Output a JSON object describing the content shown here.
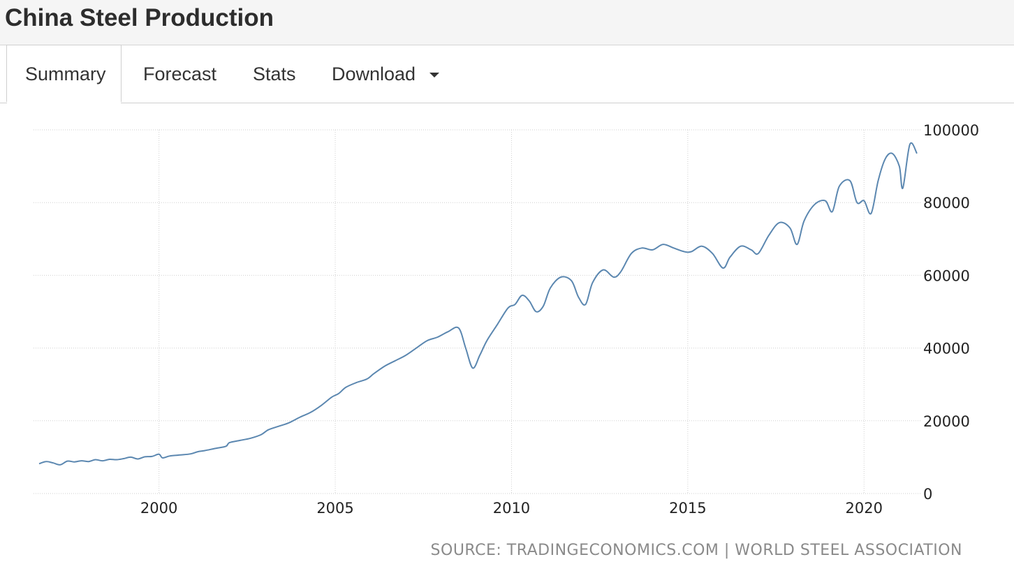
{
  "header": {
    "title": "China Steel Production"
  },
  "tabs": [
    {
      "label": "Summary",
      "active": true
    },
    {
      "label": "Forecast",
      "active": false
    },
    {
      "label": "Stats",
      "active": false
    },
    {
      "label": "Download",
      "active": false,
      "dropdown": true
    }
  ],
  "source": "SOURCE: TRADINGECONOMICS.COM | WORLD STEEL ASSOCIATION",
  "chart_data": {
    "type": "line",
    "title": "",
    "xlabel": "",
    "ylabel": "",
    "line_color": "#5b87b0",
    "grid": true,
    "xlim": [
      1996.6,
      2021.5
    ],
    "ylim": [
      0,
      100000
    ],
    "x_ticks": [
      2000,
      2005,
      2010,
      2015,
      2020
    ],
    "y_ticks": [
      0,
      20000,
      40000,
      60000,
      80000,
      100000
    ],
    "y_axis_position": "right",
    "series": [
      {
        "name": "",
        "points": [
          [
            1996.6,
            8200
          ],
          [
            1996.8,
            8800
          ],
          [
            1997.0,
            8400
          ],
          [
            1997.2,
            7900
          ],
          [
            1997.4,
            8900
          ],
          [
            1997.6,
            8700
          ],
          [
            1997.8,
            9000
          ],
          [
            1998.0,
            8800
          ],
          [
            1998.2,
            9300
          ],
          [
            1998.4,
            9000
          ],
          [
            1998.6,
            9400
          ],
          [
            1998.8,
            9300
          ],
          [
            1999.0,
            9600
          ],
          [
            1999.2,
            10000
          ],
          [
            1999.4,
            9500
          ],
          [
            1999.6,
            10100
          ],
          [
            1999.8,
            10200
          ],
          [
            2000.0,
            10800
          ],
          [
            2000.1,
            9800
          ],
          [
            2000.3,
            10300
          ],
          [
            2000.6,
            10600
          ],
          [
            2000.9,
            10900
          ],
          [
            2001.1,
            11500
          ],
          [
            2001.3,
            11800
          ],
          [
            2001.6,
            12400
          ],
          [
            2001.9,
            13000
          ],
          [
            2002.0,
            14000
          ],
          [
            2002.3,
            14600
          ],
          [
            2002.6,
            15200
          ],
          [
            2002.9,
            16200
          ],
          [
            2003.1,
            17500
          ],
          [
            2003.4,
            18500
          ],
          [
            2003.7,
            19500
          ],
          [
            2004.0,
            21000
          ],
          [
            2004.3,
            22300
          ],
          [
            2004.6,
            24200
          ],
          [
            2004.9,
            26500
          ],
          [
            2005.1,
            27500
          ],
          [
            2005.3,
            29200
          ],
          [
            2005.6,
            30500
          ],
          [
            2005.9,
            31500
          ],
          [
            2006.1,
            33000
          ],
          [
            2006.4,
            35000
          ],
          [
            2006.7,
            36500
          ],
          [
            2007.0,
            38000
          ],
          [
            2007.3,
            40000
          ],
          [
            2007.6,
            42000
          ],
          [
            2007.9,
            43000
          ],
          [
            2008.2,
            44500
          ],
          [
            2008.5,
            45500
          ],
          [
            2008.7,
            40000
          ],
          [
            2008.9,
            34500
          ],
          [
            2009.1,
            38000
          ],
          [
            2009.3,
            42000
          ],
          [
            2009.6,
            46500
          ],
          [
            2009.9,
            51000
          ],
          [
            2010.1,
            52000
          ],
          [
            2010.3,
            54500
          ],
          [
            2010.5,
            53000
          ],
          [
            2010.7,
            50000
          ],
          [
            2010.9,
            51500
          ],
          [
            2011.1,
            56500
          ],
          [
            2011.4,
            59500
          ],
          [
            2011.7,
            58500
          ],
          [
            2011.9,
            54000
          ],
          [
            2012.1,
            52000
          ],
          [
            2012.3,
            58000
          ],
          [
            2012.6,
            61500
          ],
          [
            2012.9,
            59500
          ],
          [
            2013.1,
            61000
          ],
          [
            2013.4,
            66000
          ],
          [
            2013.7,
            67500
          ],
          [
            2014.0,
            67000
          ],
          [
            2014.3,
            68500
          ],
          [
            2014.6,
            67500
          ],
          [
            2014.9,
            66500
          ],
          [
            2015.1,
            66500
          ],
          [
            2015.4,
            68000
          ],
          [
            2015.7,
            66000
          ],
          [
            2016.0,
            62000
          ],
          [
            2016.2,
            65000
          ],
          [
            2016.5,
            68000
          ],
          [
            2016.8,
            67000
          ],
          [
            2017.0,
            66000
          ],
          [
            2017.3,
            71000
          ],
          [
            2017.6,
            74500
          ],
          [
            2017.9,
            73000
          ],
          [
            2018.1,
            68500
          ],
          [
            2018.3,
            75000
          ],
          [
            2018.6,
            79500
          ],
          [
            2018.9,
            80500
          ],
          [
            2019.1,
            77500
          ],
          [
            2019.3,
            84500
          ],
          [
            2019.6,
            86000
          ],
          [
            2019.8,
            80000
          ],
          [
            2020.0,
            80500
          ],
          [
            2020.2,
            77000
          ],
          [
            2020.4,
            86000
          ],
          [
            2020.6,
            92000
          ],
          [
            2020.8,
            93500
          ],
          [
            2021.0,
            90000
          ],
          [
            2021.1,
            84000
          ],
          [
            2021.3,
            96000
          ],
          [
            2021.5,
            93500
          ]
        ]
      }
    ]
  }
}
